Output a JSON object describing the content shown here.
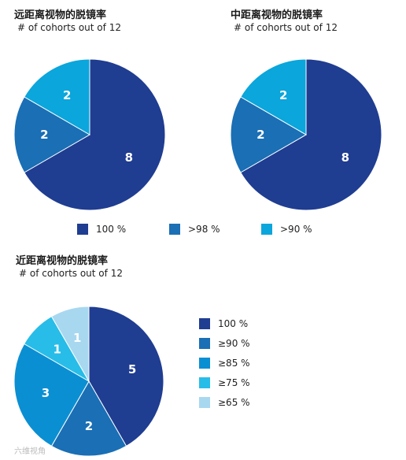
{
  "chart_data": [
    {
      "type": "pie",
      "title": "远距离视物的脱镜率",
      "subtitle": "# of cohorts out of 12",
      "categories": [
        "100 %",
        ">98 %",
        ">90 %"
      ],
      "values": [
        8,
        2,
        2
      ],
      "colors": [
        "#1f3d91",
        "#1a6fb5",
        "#0aa6dc"
      ]
    },
    {
      "type": "pie",
      "title": "中距离视物的脱镜率",
      "subtitle": "# of cohorts out of 12",
      "categories": [
        "100 %",
        ">98 %",
        ">90 %"
      ],
      "values": [
        8,
        2,
        2
      ],
      "colors": [
        "#1f3d91",
        "#1a6fb5",
        "#0aa6dc"
      ]
    },
    {
      "type": "pie",
      "title": "近距离视物的脱镜率",
      "subtitle": "# of cohorts out of 12",
      "categories": [
        "100 %",
        "≥90 %",
        "≥85 %",
        "≥75 %",
        "≥65 %"
      ],
      "values": [
        5,
        2,
        3,
        1,
        1
      ],
      "colors": [
        "#1f3d91",
        "#1a6fb5",
        "#0b8fd3",
        "#27bde8",
        "#a8d8f0"
      ]
    }
  ],
  "legend_top": [
    "100 %",
    ">98 %",
    ">90 %"
  ],
  "legend_bottom": [
    "100 %",
    "≥90 %",
    "≥85 %",
    "≥75 %",
    "≥65 %"
  ],
  "watermark": "六维视角"
}
